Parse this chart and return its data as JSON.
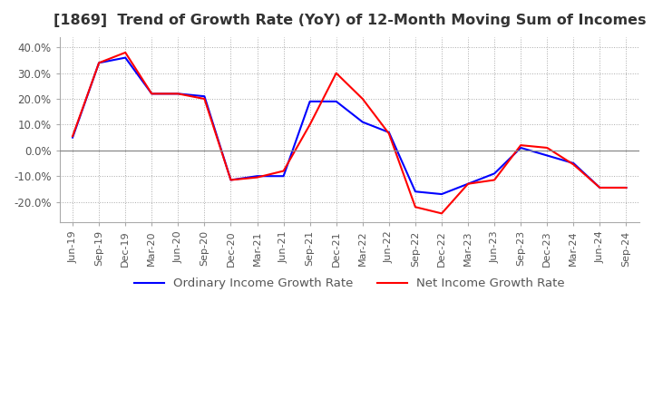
{
  "title": "[1869]  Trend of Growth Rate (YoY) of 12-Month Moving Sum of Incomes",
  "title_fontsize": 11.5,
  "ylim": [
    -0.28,
    0.44
  ],
  "yticks": [
    -0.2,
    -0.1,
    0.0,
    0.1,
    0.2,
    0.3,
    0.4
  ],
  "x_labels": [
    "Jun-19",
    "Sep-19",
    "Dec-19",
    "Mar-20",
    "Jun-20",
    "Sep-20",
    "Dec-20",
    "Mar-21",
    "Jun-21",
    "Sep-21",
    "Dec-21",
    "Mar-22",
    "Jun-22",
    "Sep-22",
    "Dec-22",
    "Mar-23",
    "Jun-23",
    "Sep-23",
    "Dec-23",
    "Mar-24",
    "Jun-24",
    "Sep-24"
  ],
  "ordinary_income": [
    0.05,
    0.34,
    0.36,
    0.22,
    0.22,
    0.21,
    -0.115,
    -0.1,
    -0.1,
    0.19,
    0.19,
    0.11,
    0.07,
    -0.16,
    -0.17,
    -0.13,
    -0.09,
    0.01,
    -0.02,
    -0.05,
    -0.145,
    -0.145
  ],
  "net_income": [
    0.055,
    0.34,
    0.38,
    0.22,
    0.22,
    0.2,
    -0.115,
    -0.105,
    -0.08,
    0.1,
    0.3,
    0.2,
    0.065,
    -0.22,
    -0.245,
    -0.13,
    -0.115,
    0.02,
    0.01,
    -0.055,
    -0.145,
    -0.145
  ],
  "ordinary_color": "#0000FF",
  "net_color": "#FF0000",
  "line_width": 1.5,
  "background_color": "#FFFFFF",
  "grid_color": "#AAAAAA",
  "grid_linestyle": "dotted",
  "legend_ordinary": "Ordinary Income Growth Rate",
  "legend_net": "Net Income Growth Rate"
}
